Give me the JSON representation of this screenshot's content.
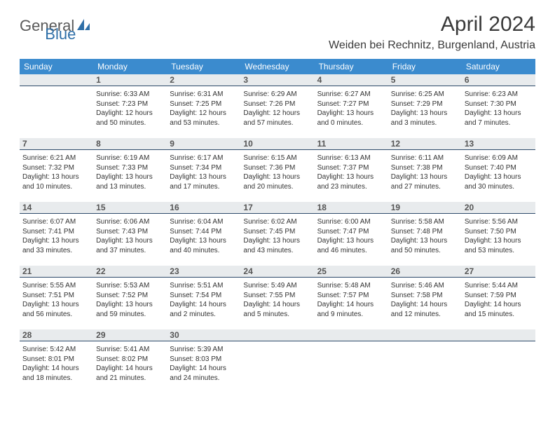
{
  "logo": {
    "text1": "General",
    "text2": "Blue"
  },
  "title": "April 2024",
  "location": "Weiden bei Rechnitz, Burgenland, Austria",
  "colors": {
    "header_bg": "#3b8bce",
    "header_text": "#ffffff",
    "daynum_bg": "#e8ebed",
    "daynum_border": "#2d4a6a",
    "body_text": "#333333",
    "title_text": "#3a3a3a",
    "logo_gray": "#5a5a5a",
    "logo_blue": "#2f6fa8",
    "page_bg": "#ffffff"
  },
  "typography": {
    "title_fontsize": 30,
    "location_fontsize": 16,
    "dayhead_fontsize": 12,
    "daynum_fontsize": 12,
    "cell_fontsize": 10,
    "logo_fontsize": 22
  },
  "days_of_week": [
    "Sunday",
    "Monday",
    "Tuesday",
    "Wednesday",
    "Thursday",
    "Friday",
    "Saturday"
  ],
  "weeks": [
    [
      {
        "num": "",
        "lines": []
      },
      {
        "num": "1",
        "lines": [
          "Sunrise: 6:33 AM",
          "Sunset: 7:23 PM",
          "Daylight: 12 hours",
          "and 50 minutes."
        ]
      },
      {
        "num": "2",
        "lines": [
          "Sunrise: 6:31 AM",
          "Sunset: 7:25 PM",
          "Daylight: 12 hours",
          "and 53 minutes."
        ]
      },
      {
        "num": "3",
        "lines": [
          "Sunrise: 6:29 AM",
          "Sunset: 7:26 PM",
          "Daylight: 12 hours",
          "and 57 minutes."
        ]
      },
      {
        "num": "4",
        "lines": [
          "Sunrise: 6:27 AM",
          "Sunset: 7:27 PM",
          "Daylight: 13 hours",
          "and 0 minutes."
        ]
      },
      {
        "num": "5",
        "lines": [
          "Sunrise: 6:25 AM",
          "Sunset: 7:29 PM",
          "Daylight: 13 hours",
          "and 3 minutes."
        ]
      },
      {
        "num": "6",
        "lines": [
          "Sunrise: 6:23 AM",
          "Sunset: 7:30 PM",
          "Daylight: 13 hours",
          "and 7 minutes."
        ]
      }
    ],
    [
      {
        "num": "7",
        "lines": [
          "Sunrise: 6:21 AM",
          "Sunset: 7:32 PM",
          "Daylight: 13 hours",
          "and 10 minutes."
        ]
      },
      {
        "num": "8",
        "lines": [
          "Sunrise: 6:19 AM",
          "Sunset: 7:33 PM",
          "Daylight: 13 hours",
          "and 13 minutes."
        ]
      },
      {
        "num": "9",
        "lines": [
          "Sunrise: 6:17 AM",
          "Sunset: 7:34 PM",
          "Daylight: 13 hours",
          "and 17 minutes."
        ]
      },
      {
        "num": "10",
        "lines": [
          "Sunrise: 6:15 AM",
          "Sunset: 7:36 PM",
          "Daylight: 13 hours",
          "and 20 minutes."
        ]
      },
      {
        "num": "11",
        "lines": [
          "Sunrise: 6:13 AM",
          "Sunset: 7:37 PM",
          "Daylight: 13 hours",
          "and 23 minutes."
        ]
      },
      {
        "num": "12",
        "lines": [
          "Sunrise: 6:11 AM",
          "Sunset: 7:38 PM",
          "Daylight: 13 hours",
          "and 27 minutes."
        ]
      },
      {
        "num": "13",
        "lines": [
          "Sunrise: 6:09 AM",
          "Sunset: 7:40 PM",
          "Daylight: 13 hours",
          "and 30 minutes."
        ]
      }
    ],
    [
      {
        "num": "14",
        "lines": [
          "Sunrise: 6:07 AM",
          "Sunset: 7:41 PM",
          "Daylight: 13 hours",
          "and 33 minutes."
        ]
      },
      {
        "num": "15",
        "lines": [
          "Sunrise: 6:06 AM",
          "Sunset: 7:43 PM",
          "Daylight: 13 hours",
          "and 37 minutes."
        ]
      },
      {
        "num": "16",
        "lines": [
          "Sunrise: 6:04 AM",
          "Sunset: 7:44 PM",
          "Daylight: 13 hours",
          "and 40 minutes."
        ]
      },
      {
        "num": "17",
        "lines": [
          "Sunrise: 6:02 AM",
          "Sunset: 7:45 PM",
          "Daylight: 13 hours",
          "and 43 minutes."
        ]
      },
      {
        "num": "18",
        "lines": [
          "Sunrise: 6:00 AM",
          "Sunset: 7:47 PM",
          "Daylight: 13 hours",
          "and 46 minutes."
        ]
      },
      {
        "num": "19",
        "lines": [
          "Sunrise: 5:58 AM",
          "Sunset: 7:48 PM",
          "Daylight: 13 hours",
          "and 50 minutes."
        ]
      },
      {
        "num": "20",
        "lines": [
          "Sunrise: 5:56 AM",
          "Sunset: 7:50 PM",
          "Daylight: 13 hours",
          "and 53 minutes."
        ]
      }
    ],
    [
      {
        "num": "21",
        "lines": [
          "Sunrise: 5:55 AM",
          "Sunset: 7:51 PM",
          "Daylight: 13 hours",
          "and 56 minutes."
        ]
      },
      {
        "num": "22",
        "lines": [
          "Sunrise: 5:53 AM",
          "Sunset: 7:52 PM",
          "Daylight: 13 hours",
          "and 59 minutes."
        ]
      },
      {
        "num": "23",
        "lines": [
          "Sunrise: 5:51 AM",
          "Sunset: 7:54 PM",
          "Daylight: 14 hours",
          "and 2 minutes."
        ]
      },
      {
        "num": "24",
        "lines": [
          "Sunrise: 5:49 AM",
          "Sunset: 7:55 PM",
          "Daylight: 14 hours",
          "and 5 minutes."
        ]
      },
      {
        "num": "25",
        "lines": [
          "Sunrise: 5:48 AM",
          "Sunset: 7:57 PM",
          "Daylight: 14 hours",
          "and 9 minutes."
        ]
      },
      {
        "num": "26",
        "lines": [
          "Sunrise: 5:46 AM",
          "Sunset: 7:58 PM",
          "Daylight: 14 hours",
          "and 12 minutes."
        ]
      },
      {
        "num": "27",
        "lines": [
          "Sunrise: 5:44 AM",
          "Sunset: 7:59 PM",
          "Daylight: 14 hours",
          "and 15 minutes."
        ]
      }
    ],
    [
      {
        "num": "28",
        "lines": [
          "Sunrise: 5:42 AM",
          "Sunset: 8:01 PM",
          "Daylight: 14 hours",
          "and 18 minutes."
        ]
      },
      {
        "num": "29",
        "lines": [
          "Sunrise: 5:41 AM",
          "Sunset: 8:02 PM",
          "Daylight: 14 hours",
          "and 21 minutes."
        ]
      },
      {
        "num": "30",
        "lines": [
          "Sunrise: 5:39 AM",
          "Sunset: 8:03 PM",
          "Daylight: 14 hours",
          "and 24 minutes."
        ]
      },
      {
        "num": "",
        "lines": []
      },
      {
        "num": "",
        "lines": []
      },
      {
        "num": "",
        "lines": []
      },
      {
        "num": "",
        "lines": []
      }
    ]
  ]
}
